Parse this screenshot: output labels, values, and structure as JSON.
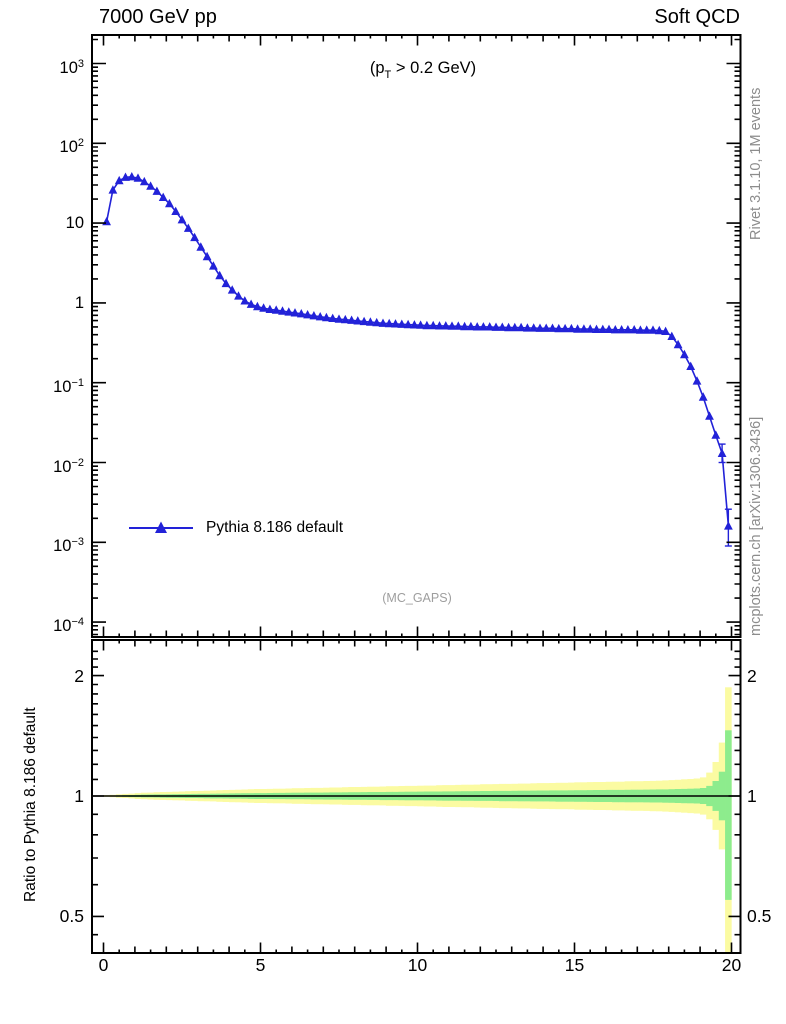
{
  "header": {
    "title_left": "7000 GeV pp",
    "title_right": "Soft QCD"
  },
  "annotations": {
    "pt_cut": {
      "pre": "(p",
      "sub": "T",
      "post": " > 0.2 GeV)"
    },
    "analysis_tag": "(MC_GAPS)"
  },
  "watermarks": {
    "top_right": "Rivet 3.1.10, 1M events",
    "bottom_right": "mcplots.cern.ch [arXiv:1306.3436]"
  },
  "legend": {
    "entries": [
      {
        "label": "Pythia 8.186 default",
        "color": "#2222d8",
        "marker": "triangle-up"
      }
    ]
  },
  "colors": {
    "curve_blue": "#2222d8",
    "band_inner_green": "#8dec8d",
    "band_outer_yellow": "#fbfba2",
    "watermark_gray": "#8c8c8c",
    "tag_gray": "#9e9e9e",
    "frame_black": "#000000"
  },
  "chart_data": {
    "type": "line",
    "title": "",
    "xlabel": "",
    "x_axis": {
      "range": [
        0,
        20
      ],
      "ticks": [
        0,
        5,
        10,
        15,
        20
      ],
      "tick_labels": [
        "0",
        "5",
        "10",
        "15",
        "20"
      ],
      "minor_step": 0.5
    },
    "main_panel": {
      "y_scale": "log",
      "y_range": [
        0.0001,
        1000
      ],
      "y_tick_labels": [
        {
          "v": 1000,
          "m": "10",
          "e": "3"
        },
        {
          "v": 100,
          "m": "10",
          "e": "2"
        },
        {
          "v": 10,
          "m": "10",
          "e": ""
        },
        {
          "v": 1,
          "m": "1",
          "e": ""
        },
        {
          "v": 0.1,
          "m": "10",
          "e": "−1"
        },
        {
          "v": 0.01,
          "m": "10",
          "e": "−2"
        },
        {
          "v": 0.001,
          "m": "10",
          "e": "−3"
        },
        {
          "v": 0.0001,
          "m": "10",
          "e": "−4"
        }
      ],
      "series": [
        {
          "name": "Pythia 8.186 default",
          "color": "#2222d8",
          "marker": "triangle-up",
          "x": [
            0.1,
            0.3,
            0.5,
            0.7,
            0.9,
            1.1,
            1.3,
            1.5,
            1.7,
            1.9,
            2.1,
            2.3,
            2.5,
            2.7,
            2.9,
            3.1,
            3.3,
            3.5,
            3.7,
            3.9,
            4.1,
            4.3,
            4.5,
            4.7,
            4.9,
            5.1,
            5.3,
            5.5,
            5.7,
            5.9,
            6.1,
            6.3,
            6.5,
            6.7,
            6.9,
            7.1,
            7.3,
            7.5,
            7.7,
            7.9,
            8.1,
            8.3,
            8.5,
            8.7,
            8.9,
            9.1,
            9.3,
            9.5,
            9.7,
            9.9,
            10.1,
            10.3,
            10.5,
            10.7,
            10.9,
            11.1,
            11.3,
            11.5,
            11.7,
            11.9,
            12.1,
            12.3,
            12.5,
            12.7,
            12.9,
            13.1,
            13.3,
            13.5,
            13.7,
            13.9,
            14.1,
            14.3,
            14.5,
            14.7,
            14.9,
            15.1,
            15.3,
            15.5,
            15.7,
            15.9,
            16.1,
            16.3,
            16.5,
            16.7,
            16.9,
            17.1,
            17.3,
            17.5,
            17.7,
            17.9,
            18.1,
            18.3,
            18.5,
            18.7,
            18.9,
            19.1,
            19.3,
            19.5,
            19.7,
            19.9
          ],
          "y": [
            10.4,
            26,
            34,
            37.5,
            38,
            36.5,
            33,
            29,
            25,
            21,
            17.5,
            14,
            11,
            8.6,
            6.6,
            5.0,
            3.8,
            2.9,
            2.2,
            1.75,
            1.45,
            1.22,
            1.06,
            0.96,
            0.9,
            0.86,
            0.83,
            0.81,
            0.79,
            0.77,
            0.75,
            0.73,
            0.71,
            0.69,
            0.67,
            0.655,
            0.64,
            0.625,
            0.615,
            0.605,
            0.595,
            0.585,
            0.575,
            0.565,
            0.555,
            0.55,
            0.545,
            0.54,
            0.535,
            0.53,
            0.525,
            0.52,
            0.52,
            0.515,
            0.515,
            0.51,
            0.51,
            0.505,
            0.505,
            0.5,
            0.5,
            0.5,
            0.495,
            0.495,
            0.49,
            0.49,
            0.49,
            0.485,
            0.485,
            0.48,
            0.48,
            0.48,
            0.475,
            0.475,
            0.475,
            0.47,
            0.47,
            0.47,
            0.465,
            0.465,
            0.465,
            0.46,
            0.46,
            0.46,
            0.46,
            0.455,
            0.455,
            0.455,
            0.45,
            0.44,
            0.38,
            0.3,
            0.225,
            0.16,
            0.105,
            0.066,
            0.038,
            0.022,
            0.013,
            0.0016
          ],
          "error_bars": [
            {
              "x": 19.7,
              "y_lo": 0.01,
              "y_hi": 0.017
            },
            {
              "x": 19.9,
              "y_lo": 0.0009,
              "y_hi": 0.0026
            }
          ]
        }
      ]
    },
    "ratio_panel": {
      "y_scale": "log",
      "y_label": "Ratio to Pythia 8.186 default",
      "y_ticks": [
        {
          "v": 2,
          "label": "2"
        },
        {
          "v": 1,
          "label": "1"
        },
        {
          "v": 0.5,
          "label": "0.5"
        }
      ],
      "reference_line": 1,
      "band_bin_start": 0,
      "band_bin_width": 0.2,
      "green_hw_pct": [
        0.2,
        0.3,
        0.4,
        0.5,
        0.6,
        0.7,
        0.8,
        0.85,
        0.9,
        0.95,
        1.0,
        1.05,
        1.1,
        1.15,
        1.2,
        1.25,
        1.3,
        1.35,
        1.4,
        1.45,
        1.5,
        1.55,
        1.6,
        1.65,
        1.7,
        1.7,
        1.75,
        1.8,
        1.8,
        1.85,
        1.9,
        1.9,
        1.95,
        2.0,
        2.0,
        2.05,
        2.1,
        2.1,
        2.15,
        2.2,
        2.2,
        2.25,
        2.3,
        2.3,
        2.35,
        2.4,
        2.4,
        2.45,
        2.5,
        2.5,
        2.55,
        2.6,
        2.6,
        2.65,
        2.7,
        2.7,
        2.75,
        2.8,
        2.8,
        2.85,
        2.9,
        2.9,
        2.95,
        3.0,
        3.0,
        3.05,
        3.1,
        3.1,
        3.15,
        3.2,
        3.2,
        3.25,
        3.3,
        3.3,
        3.35,
        3.4,
        3.4,
        3.45,
        3.5,
        3.5,
        3.55,
        3.6,
        3.6,
        3.65,
        3.7,
        3.7,
        3.75,
        3.8,
        3.85,
        3.9,
        4.0,
        4.1,
        4.2,
        4.3,
        4.4,
        4.7,
        6.0,
        9.0,
        15.0,
        46.0
      ],
      "yellow_hw_pct": [
        0.5,
        0.7,
        1.0,
        1.2,
        1.4,
        1.7,
        1.9,
        2.0,
        2.2,
        2.3,
        2.4,
        2.5,
        2.6,
        2.8,
        2.9,
        3.0,
        3.1,
        3.2,
        3.4,
        3.5,
        3.6,
        3.7,
        3.8,
        4.0,
        4.1,
        4.1,
        4.2,
        4.3,
        4.3,
        4.4,
        4.6,
        4.6,
        4.7,
        4.8,
        4.8,
        4.9,
        5.0,
        5.0,
        5.2,
        5.3,
        5.3,
        5.4,
        5.5,
        5.5,
        5.6,
        5.8,
        5.8,
        5.9,
        6.0,
        6.0,
        6.1,
        6.2,
        6.2,
        6.4,
        6.5,
        6.5,
        6.6,
        6.7,
        6.7,
        6.8,
        7.0,
        7.0,
        7.1,
        7.2,
        7.2,
        7.3,
        7.4,
        7.4,
        7.6,
        7.7,
        7.7,
        7.8,
        7.9,
        7.9,
        8.0,
        8.2,
        8.2,
        8.3,
        8.4,
        8.4,
        8.5,
        8.6,
        8.6,
        8.8,
        8.9,
        8.9,
        9.0,
        9.1,
        9.2,
        9.4,
        9.6,
        9.8,
        10.1,
        10.3,
        10.6,
        11.3,
        14.4,
        21.6,
        36.0,
        87.0
      ],
      "band_overrides": {
        "99": {
          "yellow": [
            0.405,
            1.87
          ],
          "green": [
            0.55,
            1.46
          ]
        }
      },
      "band_colors": {
        "inner": "#8dec8d",
        "outer": "#fbfba2"
      }
    }
  }
}
